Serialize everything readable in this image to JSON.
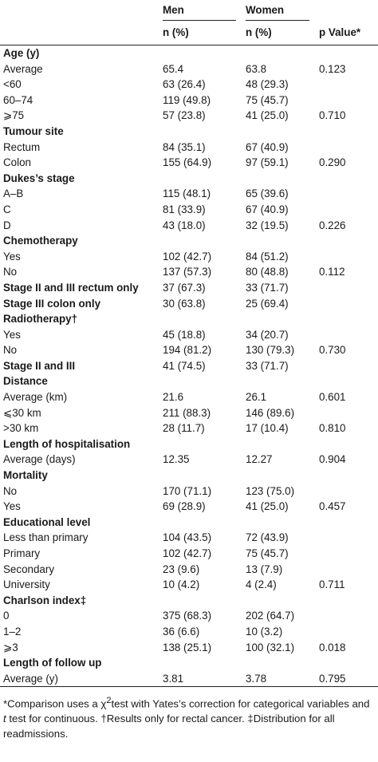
{
  "header": {
    "men": "Men",
    "women": "Women",
    "n_pct_men": "n (%)",
    "n_pct_women": "n (%)",
    "p_value": "p Value*"
  },
  "rows": [
    {
      "type": "section",
      "label": "Age (y)",
      "men": "",
      "women": "",
      "p": ""
    },
    {
      "type": "row",
      "label": "Average",
      "men": "65.4",
      "women": "63.8",
      "p": "0.123"
    },
    {
      "type": "row",
      "label": "<60",
      "men": "63 (26.4)",
      "women": "48 (29.3)",
      "p": ""
    },
    {
      "type": "row",
      "label": "60–74",
      "men": "119 (49.8)",
      "women": "75 (45.7)",
      "p": ""
    },
    {
      "type": "row",
      "label": "⩾75",
      "men": "57 (23.8)",
      "women": "41 (25.0)",
      "p": "0.710"
    },
    {
      "type": "section",
      "label": "Tumour site",
      "men": "",
      "women": "",
      "p": ""
    },
    {
      "type": "row",
      "label": "Rectum",
      "men": "84 (35.1)",
      "women": "67 (40.9)",
      "p": ""
    },
    {
      "type": "row",
      "label": "Colon",
      "men": "155 (64.9)",
      "women": "97 (59.1)",
      "p": "0.290"
    },
    {
      "type": "section",
      "label": "Dukes’s stage",
      "men": "",
      "women": "",
      "p": ""
    },
    {
      "type": "row",
      "label": "A–B",
      "men": "115 (48.1)",
      "women": "65 (39.6)",
      "p": ""
    },
    {
      "type": "row",
      "label": "C",
      "men": "81 (33.9)",
      "women": "67 (40.9)",
      "p": ""
    },
    {
      "type": "row",
      "label": "D",
      "men": "43 (18.0)",
      "women": "32 (19.5)",
      "p": "0.226"
    },
    {
      "type": "section",
      "label": "Chemotherapy",
      "men": "",
      "women": "",
      "p": ""
    },
    {
      "type": "row",
      "label": "Yes",
      "men": "102 (42.7)",
      "women": "84 (51.2)",
      "p": ""
    },
    {
      "type": "row",
      "label": "No",
      "men": "137 (57.3)",
      "women": "80 (48.8)",
      "p": "0.112"
    },
    {
      "type": "section",
      "label": "Stage II and III rectum only",
      "men": "37 (67.3)",
      "women": "33 (71.7)",
      "p": ""
    },
    {
      "type": "section",
      "label": "Stage III colon only",
      "men": "30 (63.8)",
      "women": "25 (69.4)",
      "p": ""
    },
    {
      "type": "section",
      "label": "Radiotherapy†",
      "men": "",
      "women": "",
      "p": ""
    },
    {
      "type": "row",
      "label": "Yes",
      "men": "45 (18.8)",
      "women": "34 (20.7)",
      "p": ""
    },
    {
      "type": "row",
      "label": "No",
      "men": "194 (81.2)",
      "women": "130 (79.3)",
      "p": "0.730"
    },
    {
      "type": "section",
      "label": "Stage II and III",
      "men": "41 (74.5)",
      "women": "33 (71.7)",
      "p": ""
    },
    {
      "type": "section",
      "label": "Distance",
      "men": "",
      "women": "",
      "p": ""
    },
    {
      "type": "row",
      "label": "Average (km)",
      "men": "21.6",
      "women": "26.1",
      "p": "0.601"
    },
    {
      "type": "row",
      "label": "⩽30 km",
      "men": "211 (88.3)",
      "women": "146 (89.6)",
      "p": ""
    },
    {
      "type": "row",
      "label": ">30 km",
      "men": "28 (11.7)",
      "women": "17 (10.4)",
      "p": "0.810"
    },
    {
      "type": "section",
      "label": "Length of hospitalisation",
      "men": "",
      "women": "",
      "p": ""
    },
    {
      "type": "row",
      "label": "Average (days)",
      "men": "12.35",
      "women": "12.27",
      "p": "0.904"
    },
    {
      "type": "section",
      "label": "Mortality",
      "men": "",
      "women": "",
      "p": ""
    },
    {
      "type": "row",
      "label": "No",
      "men": "170 (71.1)",
      "women": "123 (75.0)",
      "p": ""
    },
    {
      "type": "row",
      "label": "Yes",
      "men": "69 (28.9)",
      "women": "41 (25.0)",
      "p": "0.457"
    },
    {
      "type": "section",
      "label": "Educational level",
      "men": "",
      "women": "",
      "p": ""
    },
    {
      "type": "row",
      "label": "Less than primary",
      "men": "104 (43.5)",
      "women": "72 (43.9)",
      "p": ""
    },
    {
      "type": "row",
      "label": "Primary",
      "men": "102 (42.7)",
      "women": "75 (45.7)",
      "p": ""
    },
    {
      "type": "row",
      "label": "Secondary",
      "men": "23 (9.6)",
      "women": "13 (7.9)",
      "p": ""
    },
    {
      "type": "row",
      "label": "University",
      "men": "10 (4.2)",
      "women": "4 (2.4)",
      "p": "0.711"
    },
    {
      "type": "section",
      "label": "Charlson index‡",
      "men": "",
      "women": "",
      "p": ""
    },
    {
      "type": "row",
      "label": "0",
      "men": "375 (68.3)",
      "women": "202 (64.7)",
      "p": ""
    },
    {
      "type": "row",
      "label": "1–2",
      "men": "36 (6.6)",
      "women": "10 (3.2)",
      "p": ""
    },
    {
      "type": "row",
      "label": "⩾3",
      "men": "138 (25.1)",
      "women": "100 (32.1)",
      "p": "0.018"
    },
    {
      "type": "section",
      "label": "Length of follow up",
      "men": "",
      "women": "",
      "p": ""
    },
    {
      "type": "row",
      "label": "Average (y)",
      "men": "3.81",
      "women": "3.78",
      "p": "0.795"
    }
  ],
  "footnote": {
    "part1": "*Comparison uses a χ",
    "sup": "2",
    "part2": "test with Yates’s correction for categorical variables and ",
    "t": "t",
    "part3": " test for continuous. †Results only for rectal cancer. ‡Distribution for all readmissions."
  }
}
